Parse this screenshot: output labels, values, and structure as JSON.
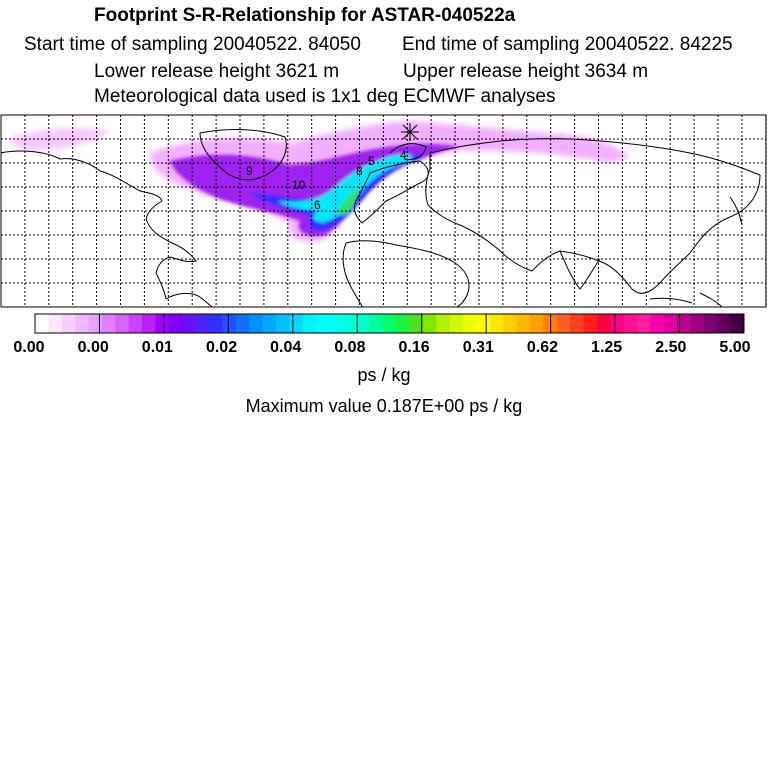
{
  "header": {
    "title": "Footprint S-R-Relationship for ASTAR-040522a",
    "start_sampling": "Start time of sampling 20040522. 84050",
    "end_sampling": "End time of sampling 20040522. 84225",
    "lower_release": "Lower release height 3621 m",
    "upper_release": "Upper release height 3634 m",
    "met_data": "Meteorological data used is 1x1 deg ECMWF analyses"
  },
  "map": {
    "plume_labels": [
      "9",
      "10",
      "6",
      "8",
      "5",
      "4"
    ],
    "colors": {
      "frame": "#000000",
      "grid": "#000000",
      "land_outline": "#000000",
      "plume_low": "#f0a0ff",
      "plume_mid": "#a020f0",
      "plume_high": "#3030ff",
      "plume_core": "#00e8ff",
      "plume_peak": "#30e070"
    }
  },
  "colorbar": {
    "tick_labels": [
      "0.00",
      "0.00",
      "0.01",
      "0.02",
      "0.04",
      "0.08",
      "0.16",
      "0.31",
      "0.62",
      "1.25",
      "2.50",
      "5.00"
    ],
    "colors": [
      "#ffffff",
      "#fbe8ff",
      "#f6d0ff",
      "#f0b8ff",
      "#e8a0ff",
      "#e080ff",
      "#d860ff",
      "#cc40ff",
      "#bb20ff",
      "#a000ff",
      "#8000ff",
      "#6a10ff",
      "#5020ff",
      "#3030ff",
      "#2050ff",
      "#1070ff",
      "#0090ff",
      "#00a8ff",
      "#00c0ff",
      "#00d8ff",
      "#00f0ff",
      "#00ffff",
      "#00ffee",
      "#00ffdd",
      "#00ffcc",
      "#00ff99",
      "#00ff66",
      "#20f040",
      "#50e020",
      "#80e800",
      "#b0f000",
      "#d0f800",
      "#e8ff00",
      "#ffff00",
      "#ffe800",
      "#ffd000",
      "#ffb800",
      "#ffa000",
      "#ff8000",
      "#ff6020",
      "#ff4020",
      "#ff2020",
      "#ff0040",
      "#ff0080",
      "#ff1090",
      "#ff20a0",
      "#ff00b0",
      "#e000a0",
      "#c00090",
      "#a00080",
      "#800070",
      "#600060",
      "#400040"
    ]
  },
  "units": "ps / kg",
  "max_value": "Maximum value  0.187E+00 ps / kg"
}
